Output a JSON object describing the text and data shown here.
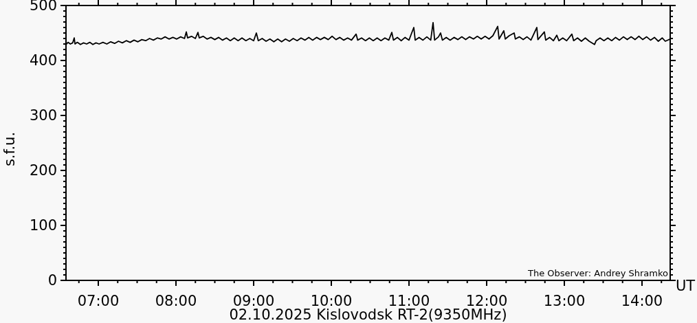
{
  "chart_data": {
    "type": "line",
    "title": "02.10.2025 Kislovodsk RT-2(9350MHz)",
    "xlabel": "UT",
    "ylabel": "s.f.u.",
    "annotations": [
      "The Observer: Andrey Shramko"
    ],
    "x": [
      6.584,
      6.61,
      6.64,
      6.67,
      6.69,
      6.7,
      6.73,
      6.77,
      6.81,
      6.85,
      6.89,
      6.93,
      6.97,
      7.01,
      7.06,
      7.11,
      7.16,
      7.21,
      7.26,
      7.31,
      7.36,
      7.41,
      7.46,
      7.51,
      7.56,
      7.61,
      7.66,
      7.71,
      7.76,
      7.81,
      7.86,
      7.91,
      7.96,
      8.01,
      8.06,
      8.11,
      8.133,
      8.15,
      8.2,
      8.25,
      8.283,
      8.3,
      8.35,
      8.4,
      8.45,
      8.5,
      8.55,
      8.6,
      8.65,
      8.7,
      8.75,
      8.8,
      8.85,
      8.9,
      8.95,
      9.0,
      9.035,
      9.06,
      9.11,
      9.16,
      9.21,
      9.26,
      9.31,
      9.36,
      9.41,
      9.46,
      9.51,
      9.56,
      9.61,
      9.66,
      9.71,
      9.76,
      9.81,
      9.86,
      9.91,
      9.96,
      10.01,
      10.06,
      10.11,
      10.16,
      10.21,
      10.26,
      10.319,
      10.34,
      10.39,
      10.44,
      10.49,
      10.54,
      10.59,
      10.64,
      10.69,
      10.74,
      10.779,
      10.8,
      10.85,
      10.9,
      10.95,
      11.0,
      11.062,
      11.08,
      11.13,
      11.18,
      11.23,
      11.28,
      11.31,
      11.33,
      11.38,
      11.407,
      11.43,
      11.48,
      11.53,
      11.58,
      11.63,
      11.68,
      11.73,
      11.78,
      11.83,
      11.88,
      11.93,
      11.98,
      12.03,
      12.08,
      12.142,
      12.16,
      12.221,
      12.24,
      12.29,
      12.354,
      12.37,
      12.42,
      12.47,
      12.52,
      12.57,
      12.646,
      12.66,
      12.743,
      12.76,
      12.81,
      12.86,
      12.903,
      12.93,
      12.98,
      13.03,
      13.097,
      13.12,
      13.17,
      13.22,
      13.27,
      13.32,
      13.389,
      13.41,
      13.46,
      13.51,
      13.56,
      13.61,
      13.66,
      13.71,
      13.76,
      13.81,
      13.86,
      13.91,
      13.96,
      14.01,
      14.06,
      14.11,
      14.16,
      14.21,
      14.26,
      14.3,
      14.363
    ],
    "series": [
      {
        "color": "#000000",
        "values": [
          429,
          433,
          430,
          432,
          441,
          430,
          433,
          429,
          432,
          430,
          433,
          429,
          432,
          430,
          433,
          430,
          434,
          431,
          435,
          432,
          436,
          433,
          437,
          434,
          438,
          436,
          440,
          437,
          441,
          439,
          443,
          439,
          442,
          439,
          443,
          440,
          452,
          441,
          444,
          440,
          451,
          441,
          444,
          439,
          442,
          438,
          442,
          437,
          441,
          436,
          441,
          436,
          441,
          436,
          440,
          436,
          450,
          436,
          440,
          435,
          439,
          434,
          439,
          434,
          439,
          435,
          440,
          436,
          441,
          437,
          442,
          437,
          442,
          438,
          442,
          438,
          444,
          438,
          442,
          437,
          441,
          437,
          448,
          437,
          441,
          436,
          441,
          436,
          441,
          436,
          441,
          437,
          451,
          437,
          442,
          436,
          442,
          437,
          460,
          437,
          442,
          437,
          443,
          437,
          469,
          437,
          443,
          450,
          437,
          442,
          437,
          442,
          438,
          443,
          438,
          443,
          439,
          444,
          439,
          444,
          439,
          445,
          462,
          439,
          454,
          439,
          445,
          450,
          439,
          443,
          438,
          443,
          437,
          460,
          438,
          452,
          437,
          442,
          436,
          446,
          436,
          441,
          436,
          448,
          436,
          441,
          435,
          441,
          435,
          429,
          436,
          441,
          436,
          441,
          436,
          442,
          437,
          443,
          438,
          443,
          438,
          444,
          438,
          443,
          437,
          442,
          435,
          441,
          435,
          439
        ]
      }
    ],
    "xlim": [
      6.584,
      14.363
    ],
    "ylim": [
      0,
      500
    ],
    "xticks": [
      {
        "value": 6.75,
        "label": null
      },
      {
        "value": 7,
        "label": "07:00"
      },
      {
        "value": 7.25,
        "label": null
      },
      {
        "value": 7.5,
        "label": null
      },
      {
        "value": 7.75,
        "label": null
      },
      {
        "value": 8,
        "label": "08:00"
      },
      {
        "value": 8.25,
        "label": null
      },
      {
        "value": 8.5,
        "label": null
      },
      {
        "value": 8.75,
        "label": null
      },
      {
        "value": 9,
        "label": "09:00"
      },
      {
        "value": 9.25,
        "label": null
      },
      {
        "value": 9.5,
        "label": null
      },
      {
        "value": 9.75,
        "label": null
      },
      {
        "value": 10,
        "label": "10:00"
      },
      {
        "value": 10.25,
        "label": null
      },
      {
        "value": 10.5,
        "label": null
      },
      {
        "value": 10.75,
        "label": null
      },
      {
        "value": 11,
        "label": "11:00"
      },
      {
        "value": 11.25,
        "label": null
      },
      {
        "value": 11.5,
        "label": null
      },
      {
        "value": 11.75,
        "label": null
      },
      {
        "value": 12,
        "label": "12:00"
      },
      {
        "value": 12.25,
        "label": null
      },
      {
        "value": 12.5,
        "label": null
      },
      {
        "value": 12.75,
        "label": null
      },
      {
        "value": 13,
        "label": "13:00"
      },
      {
        "value": 13.25,
        "label": null
      },
      {
        "value": 13.5,
        "label": null
      },
      {
        "value": 13.75,
        "label": null
      },
      {
        "value": 14,
        "label": "14:00"
      },
      {
        "value": 14.25,
        "label": null
      }
    ],
    "yticks": [
      0,
      {
        "value": 10,
        "label": null
      },
      {
        "value": 20,
        "label": null
      },
      {
        "value": 30,
        "label": null
      },
      {
        "value": 40,
        "label": null
      },
      {
        "value": 50,
        "label": null
      },
      {
        "value": 60,
        "label": null
      },
      {
        "value": 70,
        "label": null
      },
      {
        "value": 80,
        "label": null
      },
      {
        "value": 90,
        "label": null
      },
      100,
      {
        "value": 110,
        "label": null
      },
      {
        "value": 120,
        "label": null
      },
      {
        "value": 130,
        "label": null
      },
      {
        "value": 140,
        "label": null
      },
      {
        "value": 150,
        "label": null
      },
      {
        "value": 160,
        "label": null
      },
      {
        "value": 170,
        "label": null
      },
      {
        "value": 180,
        "label": null
      },
      {
        "value": 190,
        "label": null
      },
      200,
      {
        "value": 210,
        "label": null
      },
      {
        "value": 220,
        "label": null
      },
      {
        "value": 230,
        "label": null
      },
      {
        "value": 240,
        "label": null
      },
      {
        "value": 250,
        "label": null
      },
      {
        "value": 260,
        "label": null
      },
      {
        "value": 270,
        "label": null
      },
      {
        "value": 280,
        "label": null
      },
      {
        "value": 290,
        "label": null
      },
      300,
      {
        "value": 310,
        "label": null
      },
      {
        "value": 320,
        "label": null
      },
      {
        "value": 330,
        "label": null
      },
      {
        "value": 340,
        "label": null
      },
      {
        "value": 350,
        "label": null
      },
      {
        "value": 360,
        "label": null
      },
      {
        "value": 370,
        "label": null
      },
      {
        "value": 380,
        "label": null
      },
      {
        "value": 390,
        "label": null
      },
      400,
      {
        "value": 410,
        "label": null
      },
      {
        "value": 420,
        "label": null
      },
      {
        "value": 430,
        "label": null
      },
      {
        "value": 440,
        "label": null
      },
      {
        "value": 450,
        "label": null
      },
      {
        "value": 460,
        "label": null
      },
      {
        "value": 470,
        "label": null
      },
      {
        "value": 480,
        "label": null
      },
      {
        "value": 490,
        "label": null
      },
      500
    ],
    "marker": "none",
    "line_style": "solid"
  }
}
